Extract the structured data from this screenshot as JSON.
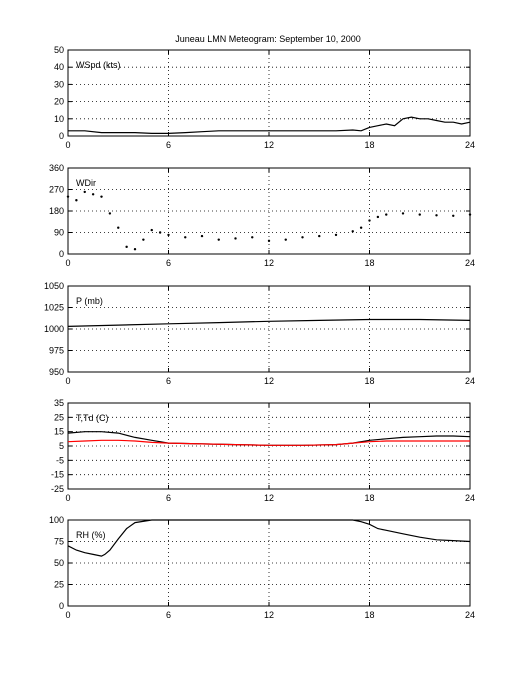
{
  "title": "Juneau LMN Meteogram: September 10, 2000",
  "chart_data": [
    {
      "id": "wspd",
      "type": "line",
      "panel_label": "WSpd (kts)",
      "xlim": [
        0,
        24
      ],
      "xticks": [
        0,
        6,
        12,
        18,
        24
      ],
      "ylim": [
        0,
        50
      ],
      "yticks": [
        0,
        10,
        20,
        30,
        40,
        50
      ],
      "grid": true,
      "series": [
        {
          "color": "#000000",
          "x": [
            0,
            1,
            2,
            3,
            4,
            5,
            6,
            7,
            8,
            9,
            10,
            11,
            12,
            13,
            14,
            15,
            16,
            17,
            17.5,
            18,
            18.5,
            19,
            19.5,
            20,
            20.5,
            21,
            21.5,
            22,
            22.5,
            23,
            23.5,
            24
          ],
          "y": [
            3,
            3,
            2,
            2,
            2,
            1.5,
            1.5,
            2,
            2.5,
            3,
            3,
            3,
            3,
            3,
            3,
            3,
            3,
            3.5,
            3,
            5,
            6,
            7,
            6,
            10,
            11,
            10,
            10,
            9,
            8,
            8,
            7,
            8
          ]
        }
      ]
    },
    {
      "id": "wdir",
      "type": "scatter",
      "panel_label": "WDir",
      "xlim": [
        0,
        24
      ],
      "xticks": [
        0,
        6,
        12,
        18,
        24
      ],
      "ylim": [
        0,
        360
      ],
      "yticks": [
        0,
        90,
        180,
        270,
        360
      ],
      "grid": true,
      "series": [
        {
          "color": "#000000",
          "x": [
            0,
            0.5,
            1,
            1.5,
            2,
            2.5,
            3,
            3.5,
            4,
            4.5,
            5,
            5.5,
            6,
            7,
            8,
            9,
            10,
            11,
            12,
            13,
            14,
            15,
            16,
            17,
            17.5,
            18,
            18.5,
            19,
            20,
            21,
            22,
            23,
            24
          ],
          "y": [
            240,
            225,
            260,
            250,
            240,
            170,
            110,
            30,
            20,
            60,
            100,
            90,
            80,
            70,
            75,
            60,
            65,
            70,
            55,
            60,
            70,
            75,
            80,
            95,
            110,
            140,
            155,
            165,
            170,
            165,
            162,
            160,
            165
          ]
        }
      ]
    },
    {
      "id": "pres",
      "type": "line",
      "panel_label": "P (mb)",
      "xlim": [
        0,
        24
      ],
      "xticks": [
        0,
        6,
        12,
        18,
        24
      ],
      "ylim": [
        950,
        1050
      ],
      "yticks": [
        950,
        975,
        1000,
        1025,
        1050
      ],
      "grid": true,
      "series": [
        {
          "color": "#000000",
          "x": [
            0,
            3,
            6,
            9,
            12,
            15,
            18,
            21,
            24
          ],
          "y": [
            1003,
            1004.5,
            1006,
            1007.5,
            1009,
            1010,
            1011,
            1011,
            1010
          ]
        }
      ]
    },
    {
      "id": "temp",
      "type": "line",
      "panel_label": "T,Td (C)",
      "xlim": [
        0,
        24
      ],
      "xticks": [
        0,
        6,
        12,
        18,
        24
      ],
      "ylim": [
        -25,
        35
      ],
      "yticks": [
        -25,
        -15,
        -5,
        5,
        15,
        25,
        35
      ],
      "grid": true,
      "series": [
        {
          "color": "#000000",
          "x": [
            0,
            1,
            2,
            3,
            4,
            5,
            6,
            8,
            10,
            12,
            14,
            16,
            17,
            18,
            19,
            20,
            21,
            22,
            23,
            24
          ],
          "y": [
            14,
            15,
            15,
            14,
            11,
            9,
            7,
            6.5,
            6,
            5.5,
            5.5,
            6,
            7,
            9,
            10,
            11,
            11.5,
            12,
            12,
            11.5
          ]
        },
        {
          "color": "#ff0000",
          "x": [
            0,
            1,
            2,
            3,
            4,
            5,
            6,
            8,
            10,
            12,
            14,
            16,
            17,
            18,
            19,
            20,
            21,
            22,
            23,
            24
          ],
          "y": [
            8,
            8.5,
            9,
            9,
            8.5,
            7.5,
            7,
            6.5,
            6,
            5.5,
            5.5,
            6,
            7,
            8,
            8.5,
            8.5,
            8.5,
            8.5,
            8.5,
            8.5
          ]
        }
      ]
    },
    {
      "id": "rh",
      "type": "line",
      "panel_label": "RH (%)",
      "xlim": [
        0,
        24
      ],
      "xticks": [
        0,
        6,
        12,
        18,
        24
      ],
      "ylim": [
        0,
        100
      ],
      "yticks": [
        0,
        25,
        50,
        75,
        100
      ],
      "grid": true,
      "series": [
        {
          "color": "#000000",
          "x": [
            0,
            0.5,
            1,
            1.5,
            2,
            2.2,
            2.5,
            3,
            3.5,
            4,
            5,
            6,
            8,
            10,
            12,
            14,
            16,
            17,
            17.5,
            18,
            18.5,
            19,
            20,
            21,
            22,
            23,
            24
          ],
          "y": [
            70,
            65,
            62,
            60,
            58,
            60,
            65,
            78,
            90,
            97,
            100,
            100,
            100,
            100,
            100,
            100,
            100,
            100,
            98,
            95,
            90,
            88,
            84,
            80,
            77,
            76,
            75
          ]
        }
      ]
    }
  ]
}
